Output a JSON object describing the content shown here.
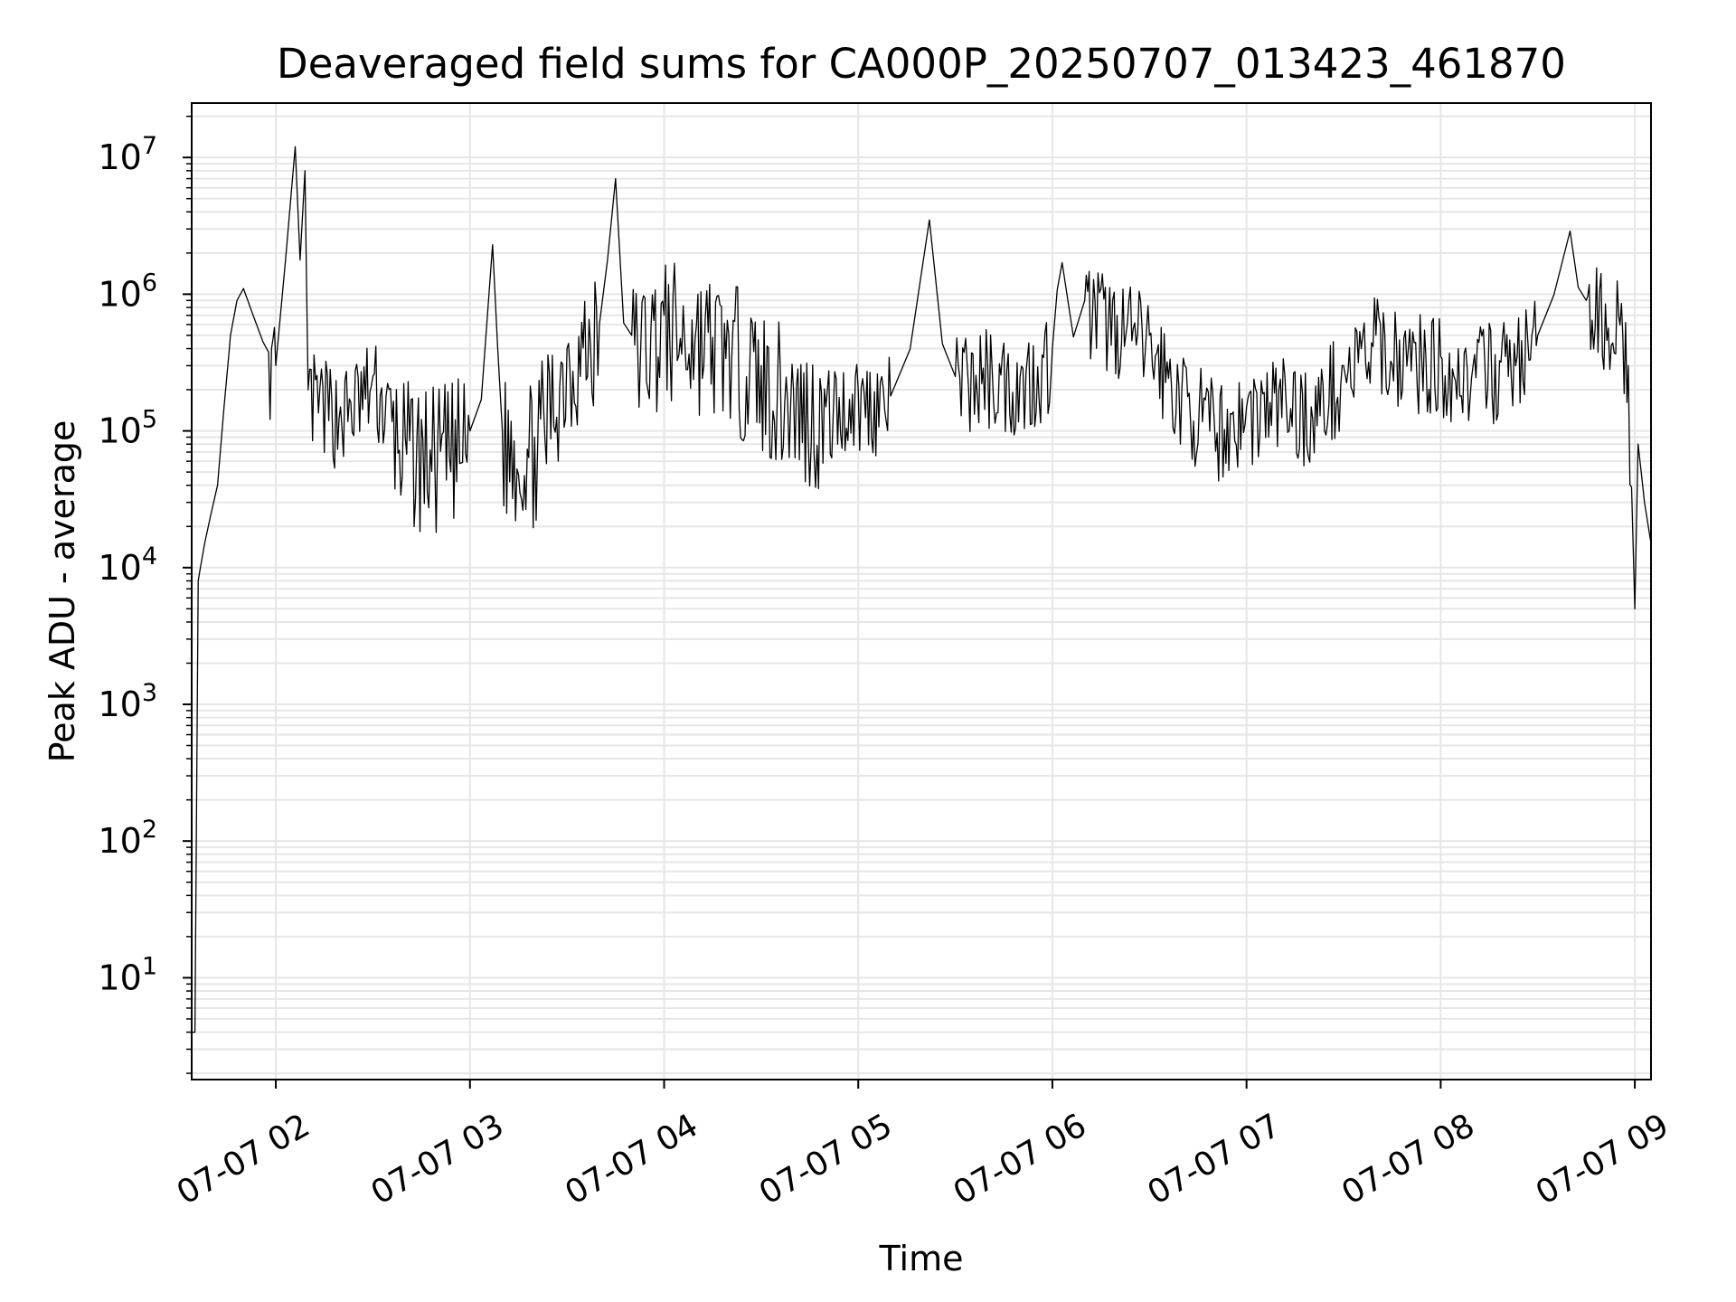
{
  "chart_data": {
    "type": "line",
    "title": "Deaveraged field sums for CA000P_20250707_013423_461870",
    "xlabel": "Time",
    "ylabel": "Peak ADU - average",
    "y_scale": "log",
    "ylim": [
      1.8,
      25000000
    ],
    "xlim": [
      "2025-07-07 01:34",
      "2025-07-07 09:05"
    ],
    "x_ticks": [
      "07-07 02",
      "07-07 03",
      "07-07 04",
      "07-07 05",
      "07-07 06",
      "07-07 07",
      "07-07 08",
      "07-07 09"
    ],
    "y_ticks": [
      {
        "base": "10",
        "exp": "1",
        "value": 10
      },
      {
        "base": "10",
        "exp": "2",
        "value": 100
      },
      {
        "base": "10",
        "exp": "3",
        "value": 1000
      },
      {
        "base": "10",
        "exp": "4",
        "value": 10000
      },
      {
        "base": "10",
        "exp": "5",
        "value": 100000
      },
      {
        "base": "10",
        "exp": "6",
        "value": 1000000
      },
      {
        "base": "10",
        "exp": "7",
        "value": 10000000
      }
    ],
    "grid": true,
    "line_color": "#000000",
    "grid_color": "#e6e6e6",
    "series": [
      {
        "points": [
          [
            "2025-07-07 01:34",
            4
          ],
          [
            "2025-07-07 01:35",
            4
          ],
          [
            "2025-07-07 01:36",
            8000
          ],
          [
            "2025-07-07 01:38",
            15000
          ],
          [
            "2025-07-07 01:40",
            25000
          ],
          [
            "2025-07-07 01:42",
            40000
          ],
          [
            "2025-07-07 01:44",
            150000
          ],
          [
            "2025-07-07 01:46",
            500000
          ],
          [
            "2025-07-07 01:48",
            900000
          ],
          [
            "2025-07-07 01:50",
            1100000
          ],
          [
            "2025-07-07 01:53",
            700000
          ],
          [
            "2025-07-07 01:56",
            450000
          ],
          [
            "2025-07-07 02:00",
            300000
          ],
          [
            "2025-07-07 02:06",
            12000000
          ],
          [
            "2025-07-07 02:09",
            8000000
          ],
          [
            "2025-07-07 02:10",
            200000
          ],
          [
            "2025-07-07 02:20",
            150000
          ],
          [
            "2025-07-07 02:30",
            250000
          ],
          [
            "2025-07-07 02:40",
            90000
          ],
          [
            "2025-07-07 02:50",
            80000
          ],
          [
            "2025-07-07 03:00",
            100000
          ],
          [
            "2025-07-07 03:07",
            2300000
          ],
          [
            "2025-07-07 03:10",
            100000
          ],
          [
            "2025-07-07 03:20",
            90000
          ],
          [
            "2025-07-07 03:30",
            400000
          ],
          [
            "2025-07-07 03:40",
            600000
          ],
          [
            "2025-07-07 03:45",
            7000000
          ],
          [
            "2025-07-07 03:50",
            500000
          ],
          [
            "2025-07-07 04:00",
            700000
          ],
          [
            "2025-07-07 04:10",
            600000
          ],
          [
            "2025-07-07 04:20",
            500000
          ],
          [
            "2025-07-07 04:30",
            300000
          ],
          [
            "2025-07-07 04:40",
            200000
          ],
          [
            "2025-07-07 04:50",
            150000
          ],
          [
            "2025-07-07 05:00",
            200000
          ],
          [
            "2025-07-07 05:10",
            180000
          ],
          [
            "2025-07-07 05:22",
            3500000
          ],
          [
            "2025-07-07 05:30",
            250000
          ],
          [
            "2025-07-07 05:40",
            300000
          ],
          [
            "2025-07-07 05:50",
            250000
          ],
          [
            "2025-07-07 06:00",
            400000
          ],
          [
            "2025-07-07 06:03",
            1700000
          ],
          [
            "2025-07-07 06:10",
            900000
          ],
          [
            "2025-07-07 06:20",
            700000
          ],
          [
            "2025-07-07 06:30",
            500000
          ],
          [
            "2025-07-07 06:40",
            200000
          ],
          [
            "2025-07-07 06:50",
            120000
          ],
          [
            "2025-07-07 07:00",
            150000
          ],
          [
            "2025-07-07 07:10",
            200000
          ],
          [
            "2025-07-07 07:20",
            150000
          ],
          [
            "2025-07-07 07:30",
            300000
          ],
          [
            "2025-07-07 07:40",
            500000
          ],
          [
            "2025-07-07 07:50",
            400000
          ],
          [
            "2025-07-07 08:00",
            350000
          ],
          [
            "2025-07-07 08:10",
            300000
          ],
          [
            "2025-07-07 08:20",
            350000
          ],
          [
            "2025-07-07 08:30",
            500000
          ],
          [
            "2025-07-07 08:40",
            2900000
          ],
          [
            "2025-07-07 08:45",
            900000
          ],
          [
            "2025-07-07 08:55",
            700000
          ],
          [
            "2025-07-07 08:58",
            300000
          ],
          [
            "2025-07-07 09:00",
            5000
          ],
          [
            "2025-07-07 09:01",
            80000
          ],
          [
            "2025-07-07 09:03",
            30000
          ],
          [
            "2025-07-07 09:05",
            15000
          ]
        ]
      }
    ]
  }
}
